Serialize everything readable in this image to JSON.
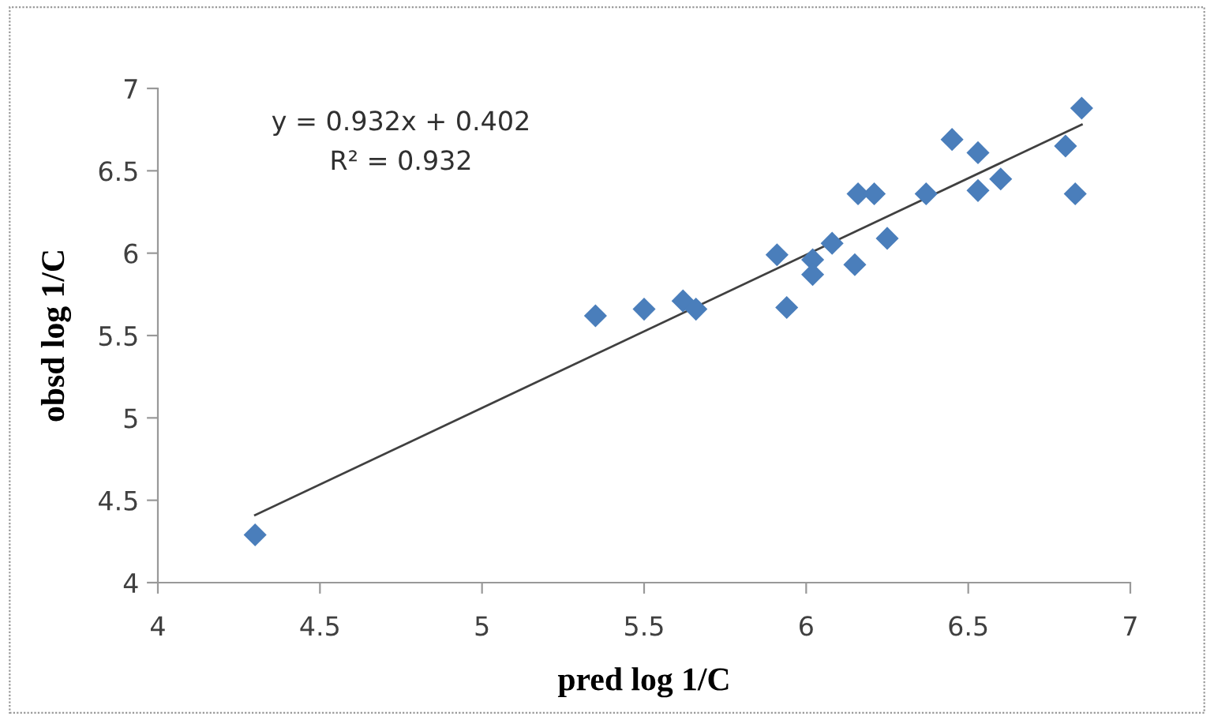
{
  "chart_data": {
    "type": "scatter",
    "xlabel": "pred log 1/C",
    "ylabel": "obsd log 1/C",
    "annotations": [
      "y = 0.932x + 0.402",
      "R² = 0.932"
    ],
    "xlim": [
      4,
      7
    ],
    "ylim": [
      4,
      7
    ],
    "xticks": [
      4,
      4.5,
      5,
      5.5,
      6,
      6.5,
      7
    ],
    "yticks": [
      4,
      4.5,
      5,
      5.5,
      6,
      6.5,
      7
    ],
    "grid": false,
    "legend": false,
    "series": [
      {
        "color": "#4a7ebb",
        "marker": "diamond",
        "x": [
          4.3,
          5.35,
          5.5,
          5.62,
          5.66,
          5.91,
          5.94,
          6.02,
          6.02,
          6.08,
          6.15,
          6.16,
          6.21,
          6.25,
          6.37,
          6.45,
          6.53,
          6.53,
          6.6,
          6.8,
          6.83,
          6.85
        ],
        "values": [
          4.29,
          5.62,
          5.66,
          5.71,
          5.66,
          5.99,
          5.67,
          5.96,
          5.87,
          6.06,
          5.93,
          6.36,
          6.36,
          6.09,
          6.36,
          6.69,
          6.61,
          6.38,
          6.45,
          6.65,
          6.36,
          6.88
        ]
      },
      {
        "type": "line",
        "color": "#404040",
        "marker": "none",
        "line_style": "solid",
        "x": [
          4.3,
          6.85
        ],
        "values": [
          4.41,
          6.78
        ]
      }
    ]
  }
}
